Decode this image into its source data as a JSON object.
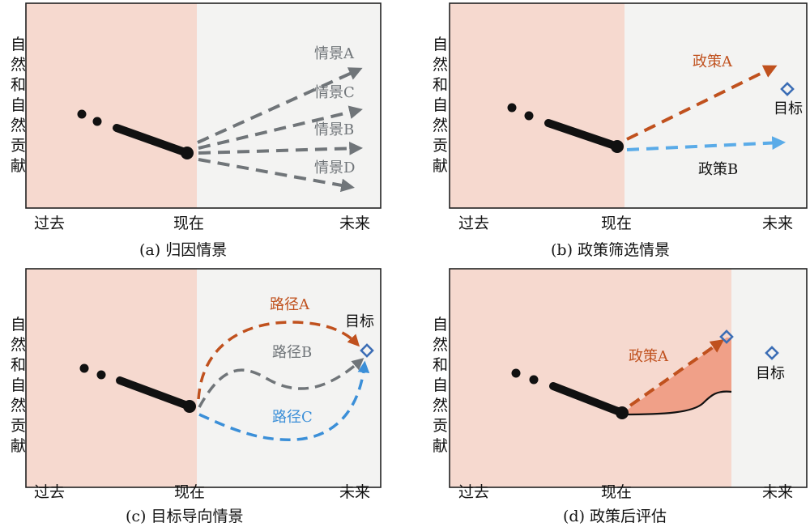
{
  "colors": {
    "past_bg": "#f6d9cf",
    "future_bg": "#f3f3f2",
    "frame": "#222222",
    "gray": "#707579",
    "orange": "#c0511e",
    "blue": "#3b8fd8",
    "light_blue": "#5aabe8",
    "target": "#3b6db5",
    "fill": "#f0a088"
  },
  "y_axis_label": "自然和自然贡献",
  "x_ticks": {
    "past": "过去",
    "present": "现在",
    "future": "未来"
  },
  "panels": {
    "a": {
      "caption": "(a) 归因情景",
      "scenarios": [
        "情景A",
        "情景C",
        "情景B",
        "情景D"
      ]
    },
    "b": {
      "caption": "(b) 政策筛选情景",
      "policy_a": "政策A",
      "policy_b": "政策B",
      "target": "目标"
    },
    "c": {
      "caption": "(c) 目标导向情景",
      "path_a": "路径A",
      "path_b": "路径B",
      "path_c": "路径C",
      "target": "目标"
    },
    "d": {
      "caption": "(d) 政策后评估",
      "policy_a": "政策A",
      "target": "目标"
    }
  }
}
